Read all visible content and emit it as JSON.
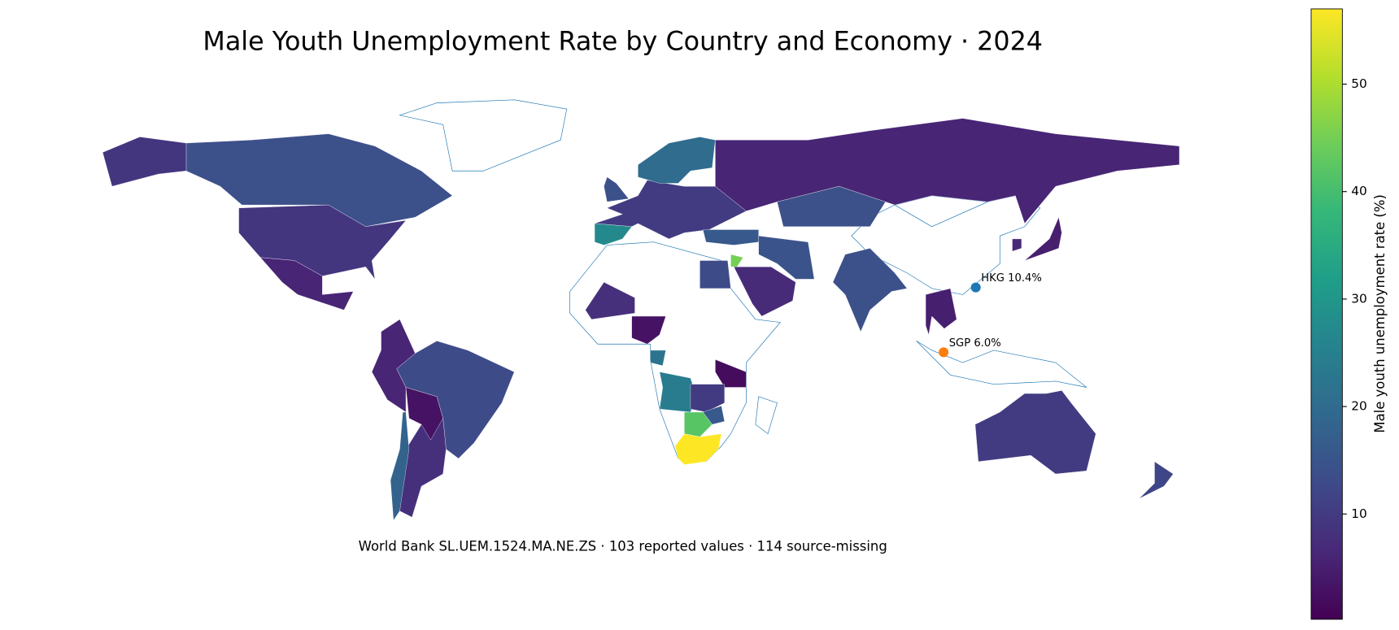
{
  "chart_data": {
    "type": "choropleth",
    "title": "Male Youth Unemployment Rate by Country and Economy · 2024",
    "note": "World Bank SL.UEM.1524.MA.NE.ZS · 103 reported values · 114 source-missing",
    "colorbar_label": "Male youth unemployment rate (%)",
    "colormap": "viridis",
    "clim": [
      0.2,
      57
    ],
    "cticks": [
      10,
      20,
      30,
      40,
      50
    ],
    "values": [
      14,
      9,
      9,
      6,
      13,
      6,
      8,
      18,
      3,
      6,
      14,
      10,
      27,
      20,
      14,
      16,
      15,
      7,
      13,
      45,
      14,
      5,
      5,
      7,
      10,
      12,
      3,
      8,
      22,
      24,
      2,
      10,
      16,
      42,
      57
    ],
    "points": [
      {
        "label": "HKG 10.4%",
        "value": 10.4,
        "color": "#1f77b4"
      },
      {
        "label": "SGP 6.0%",
        "value": 6.0,
        "color": "#ff7f0e"
      }
    ]
  }
}
